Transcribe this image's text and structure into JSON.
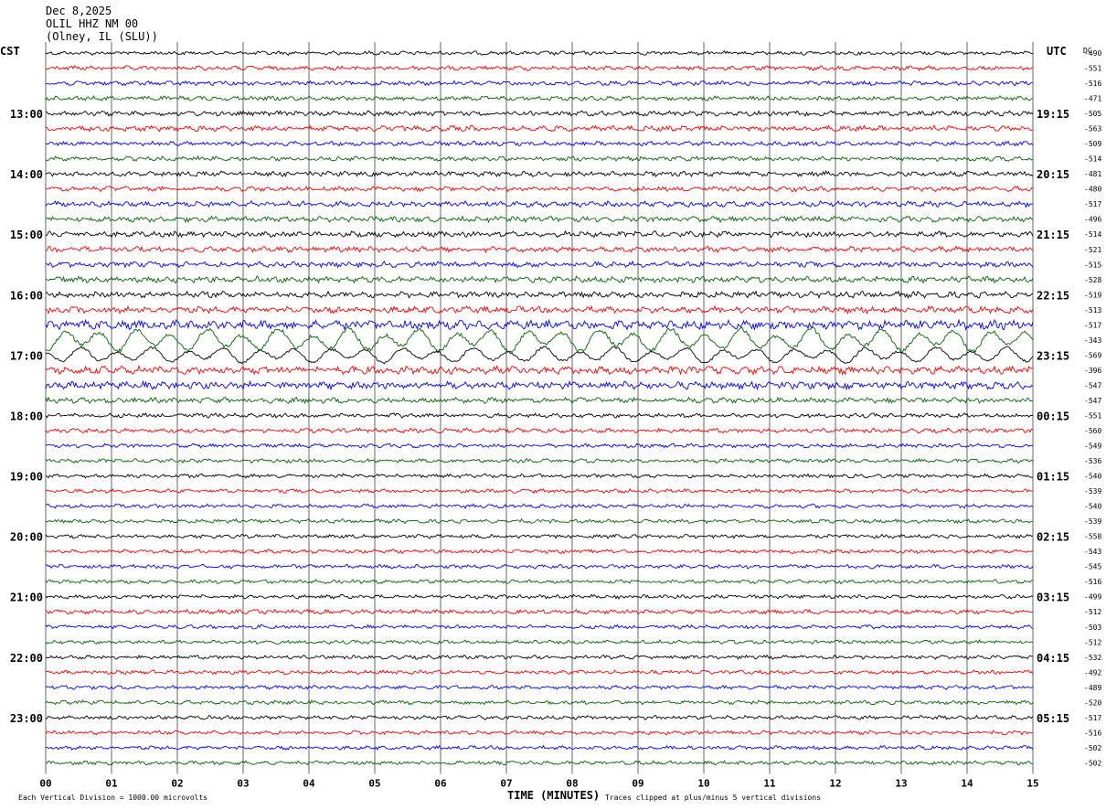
{
  "header": {
    "date": "Dec 8,2025",
    "station": "OLIL HHZ NM 00",
    "location": "(Olney, IL (SLU))"
  },
  "left_axis_label": "CST",
  "right_axis_label": "UTC",
  "dc_label": "DC",
  "footer": {
    "scale_note": "Each Vertical Division = 1000.00 microvolts",
    "xlabel": "TIME (MINUTES)",
    "clip_note": "Traces clipped at plus/minus 5 vertical divisions"
  },
  "colors": {
    "trace_cycle": [
      "#000000",
      "#ff0000",
      "#0000ff",
      "#006400"
    ],
    "grid": "#000000"
  },
  "chart_data": {
    "type": "line",
    "title": "",
    "xlabel": "TIME (MINUTES)",
    "ylabel": "",
    "xlim": [
      0,
      15
    ],
    "x_ticks": [
      "00",
      "01",
      "02",
      "03",
      "04",
      "05",
      "06",
      "07",
      "08",
      "09",
      "10",
      "11",
      "12",
      "13",
      "14",
      "15"
    ],
    "rows": 48,
    "minutes_per_row": 15,
    "cst_labels": [
      {
        "row": 4,
        "label": "13:00"
      },
      {
        "row": 8,
        "label": "14:00"
      },
      {
        "row": 12,
        "label": "15:00"
      },
      {
        "row": 16,
        "label": "16:00"
      },
      {
        "row": 20,
        "label": "17:00"
      },
      {
        "row": 24,
        "label": "18:00"
      },
      {
        "row": 28,
        "label": "19:00"
      },
      {
        "row": 32,
        "label": "20:00"
      },
      {
        "row": 36,
        "label": "21:00"
      },
      {
        "row": 40,
        "label": "22:00"
      },
      {
        "row": 44,
        "label": "23:00"
      }
    ],
    "utc_labels": [
      {
        "row": 4,
        "label": "19:15"
      },
      {
        "row": 8,
        "label": "20:15"
      },
      {
        "row": 12,
        "label": "21:15"
      },
      {
        "row": 16,
        "label": "22:15"
      },
      {
        "row": 20,
        "label": "23:15"
      },
      {
        "row": 24,
        "label": "00:15"
      },
      {
        "row": 28,
        "label": "01:15"
      },
      {
        "row": 32,
        "label": "02:15"
      },
      {
        "row": 36,
        "label": "03:15"
      },
      {
        "row": 40,
        "label": "04:15"
      },
      {
        "row": 44,
        "label": "05:15"
      }
    ],
    "dc_offsets": [
      "-490",
      "-551",
      "-516",
      "-471",
      "-505",
      "-563",
      "-509",
      "-514",
      "-481",
      "-480",
      "-517",
      "-496",
      "-514",
      "-521",
      "-515",
      "-528",
      "-519",
      "-513",
      "-517",
      "-343",
      "-569",
      "-396",
      "-547",
      "-547",
      "-551",
      "-560",
      "-549",
      "-536",
      "-540",
      "-539",
      "-540",
      "-539",
      "-558",
      "-543",
      "-545",
      "-516",
      "-499",
      "-512",
      "-503",
      "-512",
      "-532",
      "-492",
      "-489",
      "-520",
      "-517",
      "-516",
      "-502",
      "-502"
    ],
    "row_activity": [
      0.7,
      0.8,
      0.8,
      0.8,
      0.9,
      1.0,
      0.8,
      0.8,
      0.9,
      0.9,
      1.0,
      1.0,
      1.0,
      1.0,
      1.0,
      1.1,
      1.1,
      1.2,
      1.6,
      3.6,
      2.4,
      1.4,
      1.3,
      1.0,
      0.8,
      0.8,
      0.7,
      0.7,
      0.7,
      0.7,
      0.7,
      0.7,
      0.7,
      0.7,
      0.7,
      0.7,
      0.7,
      0.8,
      0.7,
      0.7,
      0.7,
      0.7,
      0.7,
      0.7,
      0.7,
      0.7,
      0.7,
      0.7
    ]
  }
}
